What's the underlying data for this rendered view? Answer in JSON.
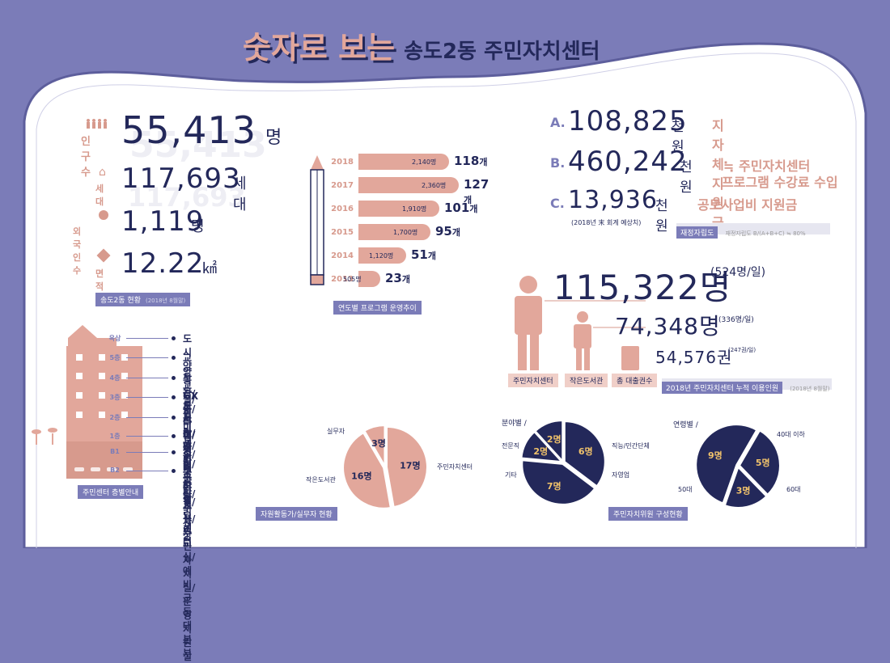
{
  "title": {
    "part1": "숫자로 보는",
    "part2": "송도2동 주민자치센터"
  },
  "stats": {
    "population": {
      "label": "인구수",
      "value": "55,413",
      "unit": "명"
    },
    "households": {
      "label": "세대",
      "value": "117,693",
      "unit": "세대"
    },
    "foreigners": {
      "label": "외국인수",
      "value": "1,119",
      "unit": "명"
    },
    "area": {
      "label": "면적",
      "value": "12.22",
      "unit": "㎢"
    },
    "caption": "송도2동 현황",
    "caption_sub": "(2018년 8월말)"
  },
  "programs": {
    "caption": "연도별 프로그램 운영추이",
    "rows": [
      {
        "year": "2018",
        "people": "2,140명",
        "count": "118",
        "unit": "개",
        "value": 2140
      },
      {
        "year": "2017",
        "people": "2,360명",
        "count": "127",
        "unit": "개",
        "value": 2360
      },
      {
        "year": "2016",
        "people": "1,910명",
        "count": "101",
        "unit": "개",
        "value": 1910
      },
      {
        "year": "2015",
        "people": "1,700명",
        "count": "95",
        "unit": "개",
        "value": 1700
      },
      {
        "year": "2014",
        "people": "1,120명",
        "count": "51",
        "unit": "개",
        "value": 1120
      },
      {
        "year": "2013",
        "people": "505명",
        "count": "23",
        "unit": "개",
        "value": 505
      }
    ]
  },
  "finance": {
    "a": {
      "letter": "A.",
      "value": "108,825",
      "unit": "천원",
      "desc": "지자체 지원금"
    },
    "b": {
      "letter": "B.",
      "value": "460,242",
      "unit": "천원",
      "desc1": "≒ 주민자치센터",
      "desc2": "프로그램 수강료 수입"
    },
    "c": {
      "letter": "C.",
      "value": "13,936",
      "unit": "천원",
      "desc": "공모사업비 지원금"
    },
    "note": "(2018년 末 회계 예상치)",
    "caption": "재정자립도",
    "caption_sub": "재정자립도 B/(A+B+C) ≒ 80%"
  },
  "usage": {
    "center": {
      "value": "115,322명",
      "sub": "(524명/일)",
      "label": "주민자치센터"
    },
    "library": {
      "value": "74,348명",
      "sub": "(336명/일)",
      "label": "작은도서관"
    },
    "books": {
      "value": "54,576권",
      "sub": "(247권/일)",
      "label": "총 대출권수"
    },
    "caption": "2018년 주민자치센터 누적 이용인원",
    "caption_sub": "(2018년 8월말)"
  },
  "floors": {
    "caption": "주민센터 층별안내",
    "rows": [
      {
        "floor": "옥상",
        "text": "도시양봉장/장독대/텃밭"
      },
      {
        "floor": "5층",
        "text": "교양교실/취미교실/대강당"
      },
      {
        "floor": "4층",
        "text": "작은도서관/바리스타실/요리교실/예비군동대본부"
      },
      {
        "floor": "3층",
        "text": "GX룸/다목적실/문화교실/주민자치실/운영지원실"
      },
      {
        "floor": "2층",
        "text": "북카페/외국어열린센터"
      },
      {
        "floor": "1층",
        "text": "민원실"
      },
      {
        "floor": "B1",
        "text": "소리교실/주차장"
      },
      {
        "floor": "B2",
        "text": "주차장"
      }
    ]
  },
  "volunteers": {
    "caption": "자원활동가/실무자 현황",
    "slices": [
      {
        "label": "주민자치센터",
        "value": "17명",
        "n": 17
      },
      {
        "label": "작은도서관",
        "value": "16명",
        "n": 16
      },
      {
        "label": "실무자",
        "value": "3명",
        "n": 3
      }
    ]
  },
  "members": {
    "caption": "주민자치위원 구성현황",
    "field_title": "분야별",
    "field": [
      {
        "label": "직능/민간단체",
        "value": "6명",
        "n": 6
      },
      {
        "label": "자영업",
        "value": "7명",
        "n": 7
      },
      {
        "label": "기타",
        "value": "2명",
        "n": 2
      },
      {
        "label": "전문직",
        "value": "2명",
        "n": 2
      }
    ],
    "age_title": "연령별",
    "age": [
      {
        "label": "40대 이하",
        "value": "5명",
        "n": 5
      },
      {
        "label": "60대",
        "value": "3명",
        "n": 3
      },
      {
        "label": "50대",
        "value": "9명",
        "n": 9
      }
    ]
  },
  "colors": {
    "navy": "#23285a",
    "pink": "#e2a79b",
    "purple": "#7b7cb8"
  }
}
